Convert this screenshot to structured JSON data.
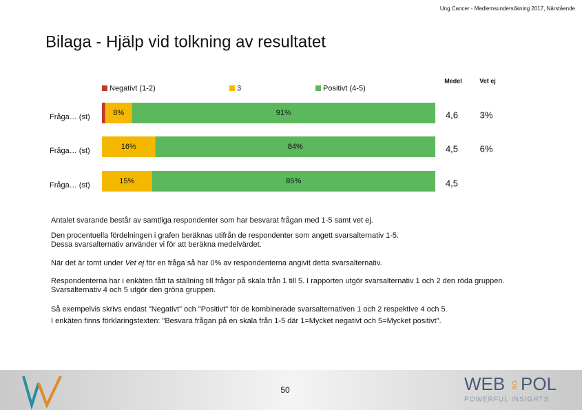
{
  "header": {
    "subtitle": "Ung Cancer - Medlemsundersökning 2017, Närstående",
    "title": "Bilaga - Hjälp vid tolkning av resultatet"
  },
  "chart_data": {
    "type": "bar",
    "horizontal": true,
    "stacked": true,
    "categories": [
      "Fråga… (st)",
      "Fråga… (st)",
      "Fråga… (st)"
    ],
    "series": [
      {
        "name": "Negativt (1-2)",
        "color": "#c0392b",
        "values": [
          1,
          0,
          0
        ]
      },
      {
        "name": "3",
        "color": "#f5b800",
        "values": [
          8,
          16,
          15
        ],
        "value_labels": [
          "8%",
          "16%",
          "15%"
        ]
      },
      {
        "name": "Positivt (4-5)",
        "color": "#5cb85c",
        "values": [
          91,
          84,
          85
        ],
        "value_labels": [
          "91%",
          "84%",
          "85%"
        ]
      }
    ],
    "xlim": [
      0,
      100
    ],
    "legend": "top",
    "columns": [
      {
        "name": "Medel",
        "values": [
          4.6,
          4.5,
          4.5
        ],
        "value_labels": [
          "4,6",
          "4,5",
          "4,5"
        ]
      },
      {
        "name": "Vet ej",
        "values": [
          3,
          6,
          null
        ],
        "value_labels": [
          "3%",
          "6%",
          null
        ]
      }
    ]
  },
  "notes": [
    [
      {
        "text": "Antalet svarande består av samtliga respondenter som har besvarat frågan med 1-5 samt vet ej."
      }
    ],
    [
      {
        "text": "Den procentuella fördelningen i grafen beräknas utifrån de respondenter som angett svarsalternativ 1-5."
      }
    ],
    [
      {
        "text": "Dessa svarsalternativ använder vi för att beräkna medelvärdet."
      }
    ],
    [
      {
        "text": "När det är tomt under "
      },
      {
        "text": "Vet ej",
        "italic": true
      },
      {
        "text": " för en fråga så har 0% av respondenterna angivit detta svarsalternativ."
      }
    ],
    [
      {
        "text": "Respondenterna har i enkäten fått ta ställning till frågor på skala från 1 till 5. I rapporten utgör svarsalternativ 1 och 2 den röda gruppen."
      }
    ],
    [
      {
        "text": "Svarsalternativ 4 och 5 utgör den gröna gruppen."
      }
    ],
    [
      {
        "text": "Så exempelvis skrivs endast \"Negativt\" och \"Positivt\" för de kombinerade svarsalternativen 1 och 2 respektive 4 och 5."
      }
    ],
    [
      {
        "text": "I enkäten finns förklaringstexten: \"Besvara frågan på en skala från 1-5 där 1=Mycket negativt och 5=Mycket positivt\"."
      }
    ]
  ],
  "footer": {
    "page": "50",
    "logo": "WEB",
    "logo_small": "RO",
    "logo_end": "POL",
    "tagline": "POWERFUL INSIGHTS"
  }
}
